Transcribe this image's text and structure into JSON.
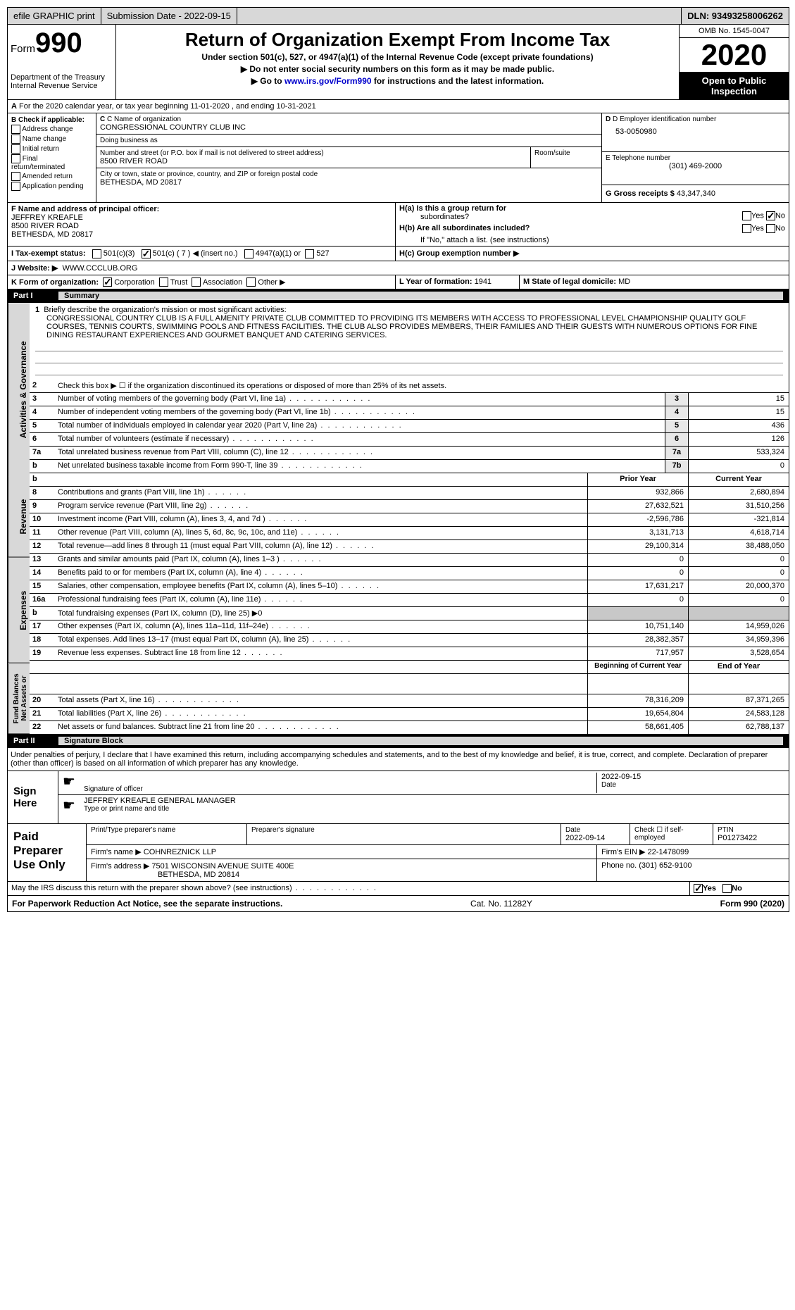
{
  "topbar": {
    "efile": "efile GRAPHIC print",
    "submission": "Submission Date - 2022-09-15",
    "dln": "DLN: 93493258006262"
  },
  "header": {
    "form_label": "Form",
    "form_num": "990",
    "dept": "Department of the Treasury\nInternal Revenue Service",
    "title": "Return of Organization Exempt From Income Tax",
    "subtitle": "Under section 501(c), 527, or 4947(a)(1) of the Internal Revenue Code (except private foundations)",
    "line1": "▶ Do not enter social security numbers on this form as it may be made public.",
    "line2_pre": "▶ Go to ",
    "line2_link": "www.irs.gov/Form990",
    "line2_post": " for instructions and the latest information.",
    "omb": "OMB No. 1545-0047",
    "year": "2020",
    "open": "Open to Public Inspection"
  },
  "sectionA": {
    "text": "For the 2020 calendar year, or tax year beginning 11-01-2020   , and ending 10-31-2021",
    "label": "A"
  },
  "colB": {
    "header": "B Check if applicable:",
    "items": [
      "Address change",
      "Name change",
      "Initial return",
      "Final return/terminated",
      "Amended return",
      "Application pending"
    ]
  },
  "colC": {
    "name_label": "C Name of organization",
    "name": "CONGRESSIONAL COUNTRY CLUB INC",
    "dba_label": "Doing business as",
    "dba": "",
    "street_label": "Number and street (or P.O. box if mail is not delivered to street address)",
    "street": "8500 RIVER ROAD",
    "room_label": "Room/suite",
    "city_label": "City or town, state or province, country, and ZIP or foreign postal code",
    "city": "BETHESDA, MD  20817"
  },
  "colD": {
    "ein_label": "D Employer identification number",
    "ein": "53-0050980",
    "phone_label": "E Telephone number",
    "phone": "(301) 469-2000",
    "gross_label": "G Gross receipts $",
    "gross": "43,347,340"
  },
  "sectionF": {
    "label": "F  Name and address of principal officer:",
    "name": "JEFFREY KREAFLE",
    "addr1": "8500 RIVER ROAD",
    "addr2": "BETHESDA, MD  20817"
  },
  "sectionH": {
    "ha": "H(a)  Is this a group return for",
    "ha2": "subordinates?",
    "hb": "H(b)  Are all subordinates included?",
    "hb2": "If \"No,\" attach a list. (see instructions)",
    "hc": "H(c)  Group exemption number ▶",
    "yes": "Yes",
    "no": "No"
  },
  "sectionI": {
    "label": "I   Tax-exempt status:",
    "opts": [
      "501(c)(3)",
      "501(c) ( 7 ) ◀ (insert no.)",
      "4947(a)(1) or",
      "527"
    ]
  },
  "sectionJ": {
    "label": "J   Website: ▶",
    "val": "WWW.CCCLUB.ORG"
  },
  "sectionK": {
    "label": "K Form of organization:",
    "opts": [
      "Corporation",
      "Trust",
      "Association",
      "Other ▶"
    ]
  },
  "sectionL": {
    "label": "L Year of formation:",
    "val": "1941"
  },
  "sectionM": {
    "label": "M State of legal domicile:",
    "val": "MD"
  },
  "part1": {
    "num": "Part I",
    "title": "Summary"
  },
  "summary": {
    "vlabels": {
      "ag": "Activities & Governance",
      "rev": "Revenue",
      "exp": "Expenses",
      "na": "Net Assets or\nFund Balances"
    },
    "line1_label": "Briefly describe the organization's mission or most significant activities:",
    "mission": "CONGRESSIONAL COUNTRY CLUB IS A FULL AMENITY PRIVATE CLUB COMMITTED TO PROVIDING ITS MEMBERS WITH ACCESS TO PROFESSIONAL LEVEL CHAMPIONSHIP QUALITY GOLF COURSES, TENNIS COURTS, SWIMMING POOLS AND FITNESS FACILITIES. THE CLUB ALSO PROVIDES MEMBERS, THEIR FAMILIES AND THEIR GUESTS WITH NUMEROUS OPTIONS FOR FINE DINING RESTAURANT EXPERIENCES AND GOURMET BANQUET AND CATERING SERVICES.",
    "line2": "Check this box ▶ ☐  if the organization discontinued its operations or disposed of more than 25% of its net assets.",
    "rows_ag": [
      {
        "n": "3",
        "d": "Number of voting members of the governing body (Part VI, line 1a)",
        "box": "3",
        "v": "15"
      },
      {
        "n": "4",
        "d": "Number of independent voting members of the governing body (Part VI, line 1b)",
        "box": "4",
        "v": "15"
      },
      {
        "n": "5",
        "d": "Total number of individuals employed in calendar year 2020 (Part V, line 2a)",
        "box": "5",
        "v": "436"
      },
      {
        "n": "6",
        "d": "Total number of volunteers (estimate if necessary)",
        "box": "6",
        "v": "126"
      },
      {
        "n": "7a",
        "d": "Total unrelated business revenue from Part VIII, column (C), line 12",
        "box": "7a",
        "v": "533,324"
      },
      {
        "n": "b",
        "d": "Net unrelated business taxable income from Form 990-T, line 39",
        "box": "7b",
        "v": "0"
      }
    ],
    "col_headers": {
      "prior": "Prior Year",
      "current": "Current Year"
    },
    "rows_rev": [
      {
        "n": "8",
        "d": "Contributions and grants (Part VIII, line 1h)",
        "p": "932,866",
        "c": "2,680,894"
      },
      {
        "n": "9",
        "d": "Program service revenue (Part VIII, line 2g)",
        "p": "27,632,521",
        "c": "31,510,256"
      },
      {
        "n": "10",
        "d": "Investment income (Part VIII, column (A), lines 3, 4, and 7d )",
        "p": "-2,596,786",
        "c": "-321,814"
      },
      {
        "n": "11",
        "d": "Other revenue (Part VIII, column (A), lines 5, 6d, 8c, 9c, 10c, and 11e)",
        "p": "3,131,713",
        "c": "4,618,714"
      },
      {
        "n": "12",
        "d": "Total revenue—add lines 8 through 11 (must equal Part VIII, column (A), line 12)",
        "p": "29,100,314",
        "c": "38,488,050"
      }
    ],
    "rows_exp": [
      {
        "n": "13",
        "d": "Grants and similar amounts paid (Part IX, column (A), lines 1–3 )",
        "p": "0",
        "c": "0"
      },
      {
        "n": "14",
        "d": "Benefits paid to or for members (Part IX, column (A), line 4)",
        "p": "0",
        "c": "0"
      },
      {
        "n": "15",
        "d": "Salaries, other compensation, employee benefits (Part IX, column (A), lines 5–10)",
        "p": "17,631,217",
        "c": "20,000,370"
      },
      {
        "n": "16a",
        "d": "Professional fundraising fees (Part IX, column (A), line 11e)",
        "p": "0",
        "c": "0"
      },
      {
        "n": "b",
        "d": "Total fundraising expenses (Part IX, column (D), line 25) ▶0",
        "p": "",
        "c": "",
        "gray": true
      },
      {
        "n": "17",
        "d": "Other expenses (Part IX, column (A), lines 11a–11d, 11f–24e)",
        "p": "10,751,140",
        "c": "14,959,026"
      },
      {
        "n": "18",
        "d": "Total expenses. Add lines 13–17 (must equal Part IX, column (A), line 25)",
        "p": "28,382,357",
        "c": "34,959,396"
      },
      {
        "n": "19",
        "d": "Revenue less expenses. Subtract line 18 from line 12",
        "p": "717,957",
        "c": "3,528,654"
      }
    ],
    "na_headers": {
      "begin": "Beginning of Current Year",
      "end": "End of Year"
    },
    "rows_na": [
      {
        "n": "20",
        "d": "Total assets (Part X, line 16)",
        "p": "78,316,209",
        "c": "87,371,265"
      },
      {
        "n": "21",
        "d": "Total liabilities (Part X, line 26)",
        "p": "19,654,804",
        "c": "24,583,128"
      },
      {
        "n": "22",
        "d": "Net assets or fund balances. Subtract line 21 from line 20",
        "p": "58,661,405",
        "c": "62,788,137"
      }
    ]
  },
  "part2": {
    "num": "Part II",
    "title": "Signature Block"
  },
  "sig": {
    "declaration": "Under penalties of perjury, I declare that I have examined this return, including accompanying schedules and statements, and to the best of my knowledge and belief, it is true, correct, and complete. Declaration of preparer (other than officer) is based on all information of which preparer has any knowledge.",
    "sign_here": "Sign Here",
    "sig_officer": "Signature of officer",
    "sig_date": "2022-09-15",
    "date_label": "Date",
    "officer_name": "JEFFREY KREAFLE  GENERAL MANAGER",
    "type_name": "Type or print name and title"
  },
  "paid": {
    "label": "Paid Preparer Use Only",
    "h_name": "Print/Type preparer's name",
    "h_sig": "Preparer's signature",
    "h_date": "Date",
    "date": "2022-09-14",
    "check_label": "Check ☐ if self-employed",
    "ptin_label": "PTIN",
    "ptin": "P01273422",
    "firm_name_label": "Firm's name    ▶",
    "firm_name": "COHNREZNICK LLP",
    "firm_ein_label": "Firm's EIN ▶",
    "firm_ein": "22-1478099",
    "firm_addr_label": "Firm's address ▶",
    "firm_addr": "7501 WISCONSIN AVENUE SUITE 400E",
    "firm_city": "BETHESDA, MD  20814",
    "phone_label": "Phone no.",
    "phone": "(301) 652-9100"
  },
  "discuss": {
    "text": "May the IRS discuss this return with the preparer shown above? (see instructions)",
    "yes": "Yes",
    "no": "No"
  },
  "footer": {
    "left": "For Paperwork Reduction Act Notice, see the separate instructions.",
    "mid": "Cat. No. 11282Y",
    "right": "Form 990 (2020)"
  }
}
